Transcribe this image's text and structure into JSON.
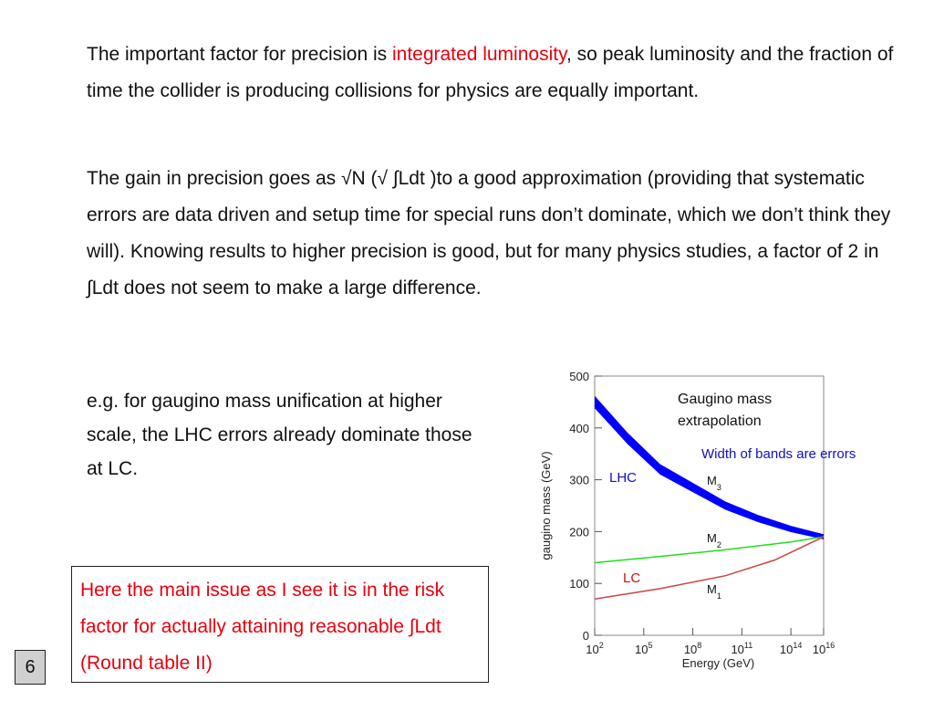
{
  "paragraph1": {
    "pre": "The important factor for precision is ",
    "highlight": "integrated luminosity",
    "post": ", so peak luminosity and the fraction of time the collider is producing collisions for physics are equally important."
  },
  "paragraph2": "The gain in precision goes as √N (√ ∫Ldt )to a good approximation (providing that systematic errors are data driven and setup time for special runs don’t dominate, which we don’t think they will).  Knowing results to higher precision is good, but for many physics studies, a factor of 2 in ∫Ldt does not seem to make a large difference.",
  "paragraph3": "e.g. for gaugino mass unification at higher scale, the LHC errors already dominate those at LC.",
  "note": "Here the main issue as I see it is in the risk factor for actually attaining reasonable ∫Ldt   (Round table II)",
  "page_number": "6",
  "colors": {
    "accent_red": "#e8000d",
    "lhc_label": "#1010c0",
    "lc_label": "#d01010",
    "m3_band": "#0000ff",
    "m2_line": "#22dd22",
    "m1_line": "#cc4444"
  },
  "chart_data": {
    "type": "line",
    "title": "Gaugino mass extrapolation",
    "title_lines": [
      "Gaugino mass",
      "extrapolation"
    ],
    "annotation": "Width of bands are errors",
    "xlabel": "Energy (GeV)",
    "ylabel": "gaugino mass (GeV)",
    "x_scale": "log",
    "xlim_log10": [
      2,
      16
    ],
    "ylim": [
      0,
      500
    ],
    "x_ticks": [
      {
        "base": "10",
        "exp": "2"
      },
      {
        "base": "10",
        "exp": "5"
      },
      {
        "base": "10",
        "exp": "8"
      },
      {
        "base": "10",
        "exp": "11"
      },
      {
        "base": "10",
        "exp": "14"
      },
      {
        "base": "10",
        "exp": "16"
      }
    ],
    "x_tick_values_log10": [
      2,
      5,
      8,
      11,
      14,
      16
    ],
    "y_ticks": [
      "0",
      "100",
      "200",
      "300",
      "400",
      "500"
    ],
    "y_tick_values": [
      0,
      100,
      200,
      300,
      400,
      500
    ],
    "labels": {
      "lhc": "LHC",
      "lc": "LC"
    },
    "series": [
      {
        "name": "M3",
        "label_base": "M",
        "label_sub": "3",
        "style": "band",
        "log10_energy": [
          2,
          4,
          6,
          8,
          10,
          12,
          14,
          16
        ],
        "values": [
          450,
          380,
          320,
          285,
          250,
          225,
          205,
          190
        ],
        "half_width": [
          12,
          11,
          10,
          9,
          8,
          7,
          6,
          5
        ]
      },
      {
        "name": "M2",
        "label_base": "M",
        "label_sub": "2",
        "style": "line",
        "log10_energy": [
          2,
          6,
          10,
          14,
          16
        ],
        "values": [
          140,
          152,
          165,
          180,
          190
        ]
      },
      {
        "name": "M1",
        "label_base": "M",
        "label_sub": "1",
        "style": "line",
        "log10_energy": [
          2,
          6,
          10,
          13,
          16
        ],
        "values": [
          70,
          90,
          115,
          145,
          190
        ]
      }
    ]
  }
}
